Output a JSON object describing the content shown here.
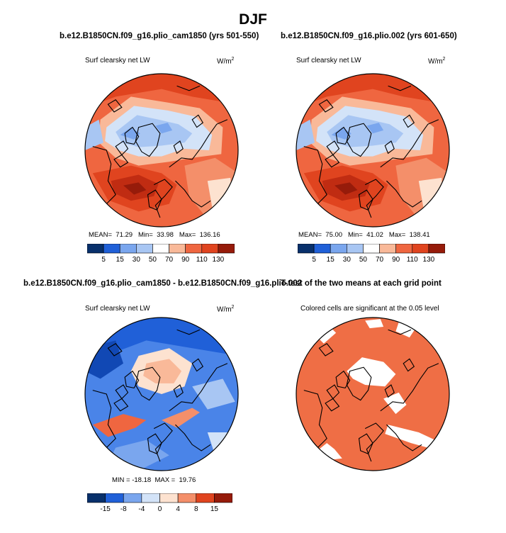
{
  "figure": {
    "title": "DJF",
    "palette_full": [
      "#08306b",
      "#1148b4",
      "#2060d8",
      "#4a84e8",
      "#7aa6ee",
      "#a8c6f3",
      "#d3e3f8",
      "#ffffff",
      "#fde2d0",
      "#f9b999",
      "#f48f6a",
      "#ef6640",
      "#e0441f",
      "#c02c12",
      "#961b0a"
    ],
    "significance_color": "#ef6e45"
  },
  "panels": [
    {
      "title": "b.e12.B1850CN.f09_g16.plio_cam1850 (yrs 501-550)",
      "subtitle": "Surf clearsky net LW",
      "units_base": "W/m",
      "units_exp": "2",
      "stats": {
        "mean_label": "MEAN=",
        "mean": "71.29",
        "min_label": "Min=",
        "min": "33.98",
        "max_label": "Max=",
        "max": "136.16"
      },
      "colorbar_ticks": [
        "5",
        "15",
        "30",
        "50",
        "70",
        "90",
        "110",
        "130"
      ]
    },
    {
      "title": "b.e12.B1850CN.f09_g16.plio.002 (yrs 601-650)",
      "subtitle": "Surf clearsky net LW",
      "units_base": "W/m",
      "units_exp": "2",
      "stats": {
        "mean_label": "MEAN=",
        "mean": "75.00",
        "min_label": "Min=",
        "min": "41.02",
        "max_label": "Max=",
        "max": "138.41"
      },
      "colorbar_ticks": [
        "5",
        "15",
        "30",
        "50",
        "70",
        "90",
        "110",
        "130"
      ]
    },
    {
      "title": "b.e12.B1850CN.f09_g16.plio_cam1850 - b.e12.B1850CN.f09_g16.plio.002",
      "subtitle": "Surf clearsky net LW",
      "units_base": "W/m",
      "units_exp": "2",
      "stats_text": "MIN = -18.18  MAX =  19.76",
      "colorbar_ticks": [
        "-15",
        "-8",
        "-4",
        "0",
        "4",
        "8",
        "15"
      ]
    },
    {
      "title": "T-test of the two means at each grid point",
      "subtitle": "Colored cells are significant at the 0.05 level"
    }
  ],
  "chart_data": [
    {
      "type": "heatmap",
      "projection": "north-polar-stereographic",
      "variable": "Surf clearsky net LW",
      "units": "W/m2",
      "stats": {
        "mean": 71.29,
        "min": 33.98,
        "max": 136.16
      },
      "color_levels": [
        5,
        15,
        30,
        50,
        70,
        90,
        110,
        130
      ]
    },
    {
      "type": "heatmap",
      "projection": "north-polar-stereographic",
      "variable": "Surf clearsky net LW",
      "units": "W/m2",
      "stats": {
        "mean": 75.0,
        "min": 41.02,
        "max": 138.41
      },
      "color_levels": [
        5,
        15,
        30,
        50,
        70,
        90,
        110,
        130
      ]
    },
    {
      "type": "heatmap",
      "projection": "north-polar-stereographic",
      "variable": "Surf clearsky net LW difference",
      "units": "W/m2",
      "stats": {
        "min": -18.18,
        "max": 19.76
      },
      "color_levels": [
        -15,
        -8,
        -4,
        0,
        4,
        8,
        15
      ]
    },
    {
      "type": "heatmap",
      "projection": "north-polar-stereographic",
      "variable": "T-test significance",
      "significance_level": 0.05
    }
  ]
}
